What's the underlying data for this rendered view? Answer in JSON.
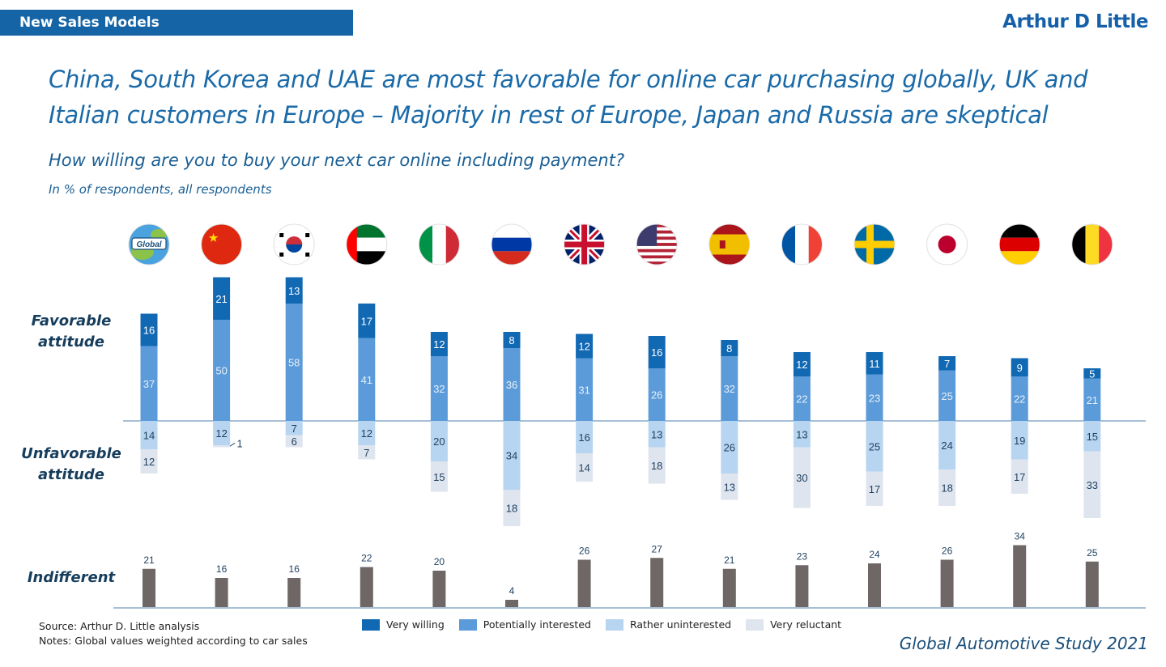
{
  "header": {
    "tag": "New Sales Models",
    "logo": "Arthur D Little",
    "title": "China, South Korea and UAE are most favorable for online car purchasing globally, UK and Italian customers in Europe – Majority in rest of Europe, Japan and Russia are skeptical",
    "question": "How willing are you to buy your next car online including payment?",
    "unit": "In % of respondents, all respondents"
  },
  "row_labels": {
    "favorable": "Favorable attitude",
    "unfavorable": "Unfavorable attitude",
    "indifferent": "Indifferent"
  },
  "flags": [
    "global-icon",
    "china-flag-icon",
    "south-korea-flag-icon",
    "uae-flag-icon",
    "italy-flag-icon",
    "russia-flag-icon",
    "uk-flag-icon",
    "usa-flag-icon",
    "spain-flag-icon",
    "france-flag-icon",
    "sweden-flag-icon",
    "japan-flag-icon",
    "germany-flag-icon",
    "belgium-flag-icon"
  ],
  "global_flag_label": "Global",
  "colors": {
    "very_willing": "#1168b3",
    "potentially_interested": "#5c9bd9",
    "rather_uninterested": "#b7d5f0",
    "very_reluctant": "#dfe5ef",
    "indifferent": "#6e6766",
    "baseline": "#8aacc8"
  },
  "legend": [
    "Very willing",
    "Potentially interested",
    "Rather uninterested",
    "Very reluctant"
  ],
  "chart_data": {
    "type": "bar",
    "categories": [
      "Global",
      "China",
      "South Korea",
      "UAE",
      "Italy",
      "Russia",
      "UK",
      "USA",
      "Spain",
      "France",
      "Sweden",
      "Japan",
      "Germany",
      "Belgium"
    ],
    "series": [
      {
        "name": "Very willing",
        "values": [
          16,
          21,
          13,
          17,
          12,
          8,
          12,
          16,
          8,
          12,
          11,
          7,
          9,
          5
        ]
      },
      {
        "name": "Potentially interested",
        "values": [
          37,
          50,
          58,
          41,
          32,
          36,
          31,
          26,
          32,
          22,
          23,
          25,
          22,
          21
        ]
      },
      {
        "name": "Rather uninterested",
        "values": [
          14,
          12,
          7,
          12,
          20,
          34,
          16,
          13,
          26,
          13,
          25,
          24,
          19,
          15
        ]
      },
      {
        "name": "Very reluctant",
        "values": [
          12,
          1,
          6,
          7,
          15,
          18,
          14,
          18,
          13,
          30,
          17,
          18,
          17,
          33
        ]
      },
      {
        "name": "Indifferent",
        "values": [
          21,
          16,
          16,
          22,
          20,
          4,
          26,
          27,
          21,
          23,
          24,
          26,
          34,
          25
        ]
      }
    ],
    "stacking": "favorable stacked above baseline, unfavorable stacked below baseline; indifferent shown separately"
  },
  "footer": {
    "source": "Source: Arthur D. Little analysis",
    "notes": "Notes: Global values weighted according to car sales",
    "brand": "Global Automotive Study 2021"
  }
}
